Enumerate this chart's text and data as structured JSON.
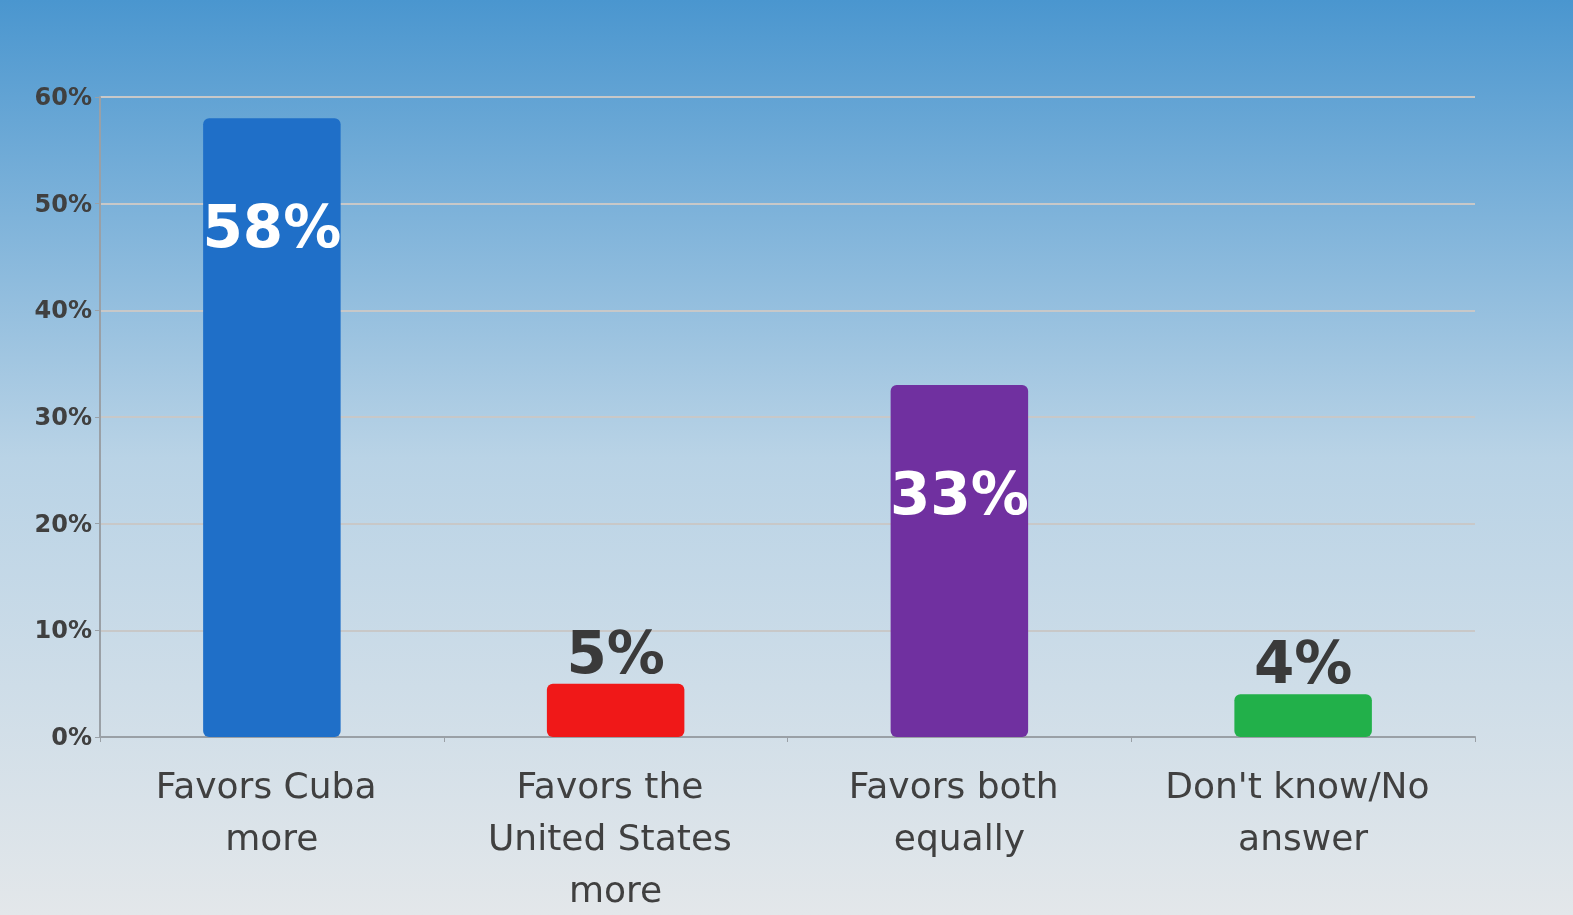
{
  "chart_data": {
    "type": "bar",
    "categories": [
      "Favors Cuba more",
      "Favors the United States more",
      "Favors both equally",
      "Don't know/No answer"
    ],
    "values": [
      58,
      5,
      33,
      4
    ],
    "colors": [
      "#1f6fc8",
      "#f01818",
      "#7030a0",
      "#22b04a"
    ],
    "value_labels": [
      "58%",
      "5%",
      "33%",
      "4%"
    ],
    "ylim": [
      0,
      60
    ],
    "yticks": [
      {
        "value": 0,
        "label": "0%"
      },
      {
        "value": 10,
        "label": "10%"
      },
      {
        "value": 20,
        "label": "20%"
      },
      {
        "value": 30,
        "label": "30%"
      },
      {
        "value": 40,
        "label": "40%"
      },
      {
        "value": 50,
        "label": "50%"
      },
      {
        "value": 60,
        "label": "60%"
      }
    ],
    "grid": "y"
  }
}
